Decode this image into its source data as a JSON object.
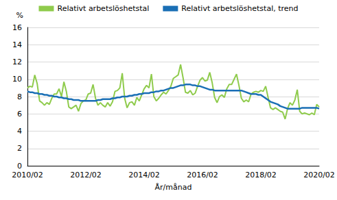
{
  "chart_data": {
    "type": "line",
    "x_label": "År/månad",
    "y_label": "%",
    "categories": [
      "2010/02",
      null,
      null,
      null,
      null,
      null,
      null,
      null,
      null,
      null,
      null,
      null,
      null,
      null,
      null,
      null,
      null,
      null,
      null,
      null,
      null,
      null,
      null,
      null,
      "2012/02",
      null,
      null,
      null,
      null,
      null,
      null,
      null,
      null,
      null,
      null,
      null,
      null,
      null,
      null,
      null,
      null,
      null,
      null,
      null,
      null,
      null,
      null,
      null,
      "2014/02",
      null,
      null,
      null,
      null,
      null,
      null,
      null,
      null,
      null,
      null,
      null,
      null,
      null,
      null,
      null,
      null,
      null,
      null,
      null,
      null,
      null,
      null,
      null,
      "2016/02",
      null,
      null,
      null,
      null,
      null,
      null,
      null,
      null,
      null,
      null,
      null,
      null,
      null,
      null,
      null,
      null,
      null,
      null,
      null,
      null,
      null,
      null,
      null,
      "2018/02",
      null,
      null,
      null,
      null,
      null,
      null,
      null,
      null,
      null,
      null,
      null,
      null,
      null,
      null,
      null,
      null,
      null,
      null,
      null,
      null,
      null,
      null,
      null,
      "2020/02"
    ],
    "series": [
      {
        "name": "Relativt arbetslöshetstal",
        "color": "#8fcb4c",
        "values": [
          9.0,
          9.2,
          9.1,
          10.5,
          9.5,
          7.5,
          7.3,
          7.0,
          7.3,
          7.1,
          7.8,
          8.3,
          8.3,
          8.9,
          8.0,
          9.7,
          8.6,
          6.8,
          6.6,
          6.8,
          7.0,
          6.3,
          7.2,
          7.5,
          7.6,
          8.3,
          8.4,
          9.4,
          7.8,
          7.0,
          7.3,
          7.0,
          6.8,
          7.3,
          6.9,
          7.4,
          8.6,
          8.7,
          9.0,
          10.7,
          7.8,
          6.7,
          7.3,
          7.4,
          7.0,
          7.9,
          7.5,
          8.2,
          8.9,
          9.3,
          9.0,
          10.6,
          8.0,
          7.5,
          7.8,
          8.2,
          8.5,
          8.3,
          8.7,
          9.2,
          10.1,
          10.3,
          10.5,
          11.7,
          10.2,
          8.5,
          8.4,
          8.7,
          8.2,
          8.4,
          9.2,
          9.9,
          10.2,
          9.8,
          9.9,
          10.8,
          9.6,
          7.9,
          7.3,
          8.0,
          8.2,
          7.9,
          8.9,
          9.4,
          9.4,
          10.0,
          10.6,
          9.3,
          7.8,
          7.4,
          7.6,
          7.4,
          8.3,
          8.5,
          8.6,
          8.5,
          8.7,
          8.6,
          9.2,
          7.9,
          6.7,
          6.5,
          6.7,
          6.5,
          6.3,
          6.2,
          5.4,
          6.6,
          7.3,
          7.0,
          7.6,
          8.8,
          6.3,
          6.0,
          6.1,
          6.0,
          5.9,
          6.1,
          5.9,
          7.1,
          6.8
        ]
      },
      {
        "name": "Relativt arbetslöshetstal, trend",
        "color": "#1a6fb5",
        "values": [
          8.6,
          8.5,
          8.5,
          8.4,
          8.4,
          8.3,
          8.3,
          8.2,
          8.2,
          8.1,
          8.1,
          8.0,
          8.0,
          7.9,
          7.9,
          7.8,
          7.8,
          7.7,
          7.7,
          7.6,
          7.6,
          7.6,
          7.5,
          7.5,
          7.5,
          7.5,
          7.5,
          7.5,
          7.5,
          7.6,
          7.6,
          7.7,
          7.7,
          7.7,
          7.7,
          7.8,
          7.8,
          7.9,
          7.9,
          8.0,
          8.0,
          8.0,
          8.1,
          8.1,
          8.2,
          8.2,
          8.3,
          8.3,
          8.4,
          8.4,
          8.4,
          8.5,
          8.5,
          8.6,
          8.6,
          8.7,
          8.7,
          8.8,
          8.9,
          9.0,
          9.0,
          9.1,
          9.2,
          9.3,
          9.3,
          9.4,
          9.4,
          9.4,
          9.3,
          9.3,
          9.2,
          9.2,
          9.1,
          9.0,
          8.9,
          8.8,
          8.8,
          8.7,
          8.7,
          8.7,
          8.7,
          8.7,
          8.7,
          8.7,
          8.7,
          8.7,
          8.7,
          8.7,
          8.7,
          8.6,
          8.5,
          8.4,
          8.3,
          8.3,
          8.3,
          8.2,
          8.2,
          8.0,
          7.8,
          7.6,
          7.4,
          7.3,
          7.2,
          7.1,
          6.9,
          6.8,
          6.7,
          6.6,
          6.6,
          6.6,
          6.6,
          6.6,
          6.6,
          6.7,
          6.7,
          6.7,
          6.7,
          6.7,
          6.7,
          6.7,
          6.6
        ]
      }
    ],
    "ylim": [
      0,
      16
    ],
    "yticks": [
      0,
      2,
      4,
      6,
      8,
      10,
      12,
      14,
      16
    ],
    "grid": true,
    "legend": "top"
  }
}
